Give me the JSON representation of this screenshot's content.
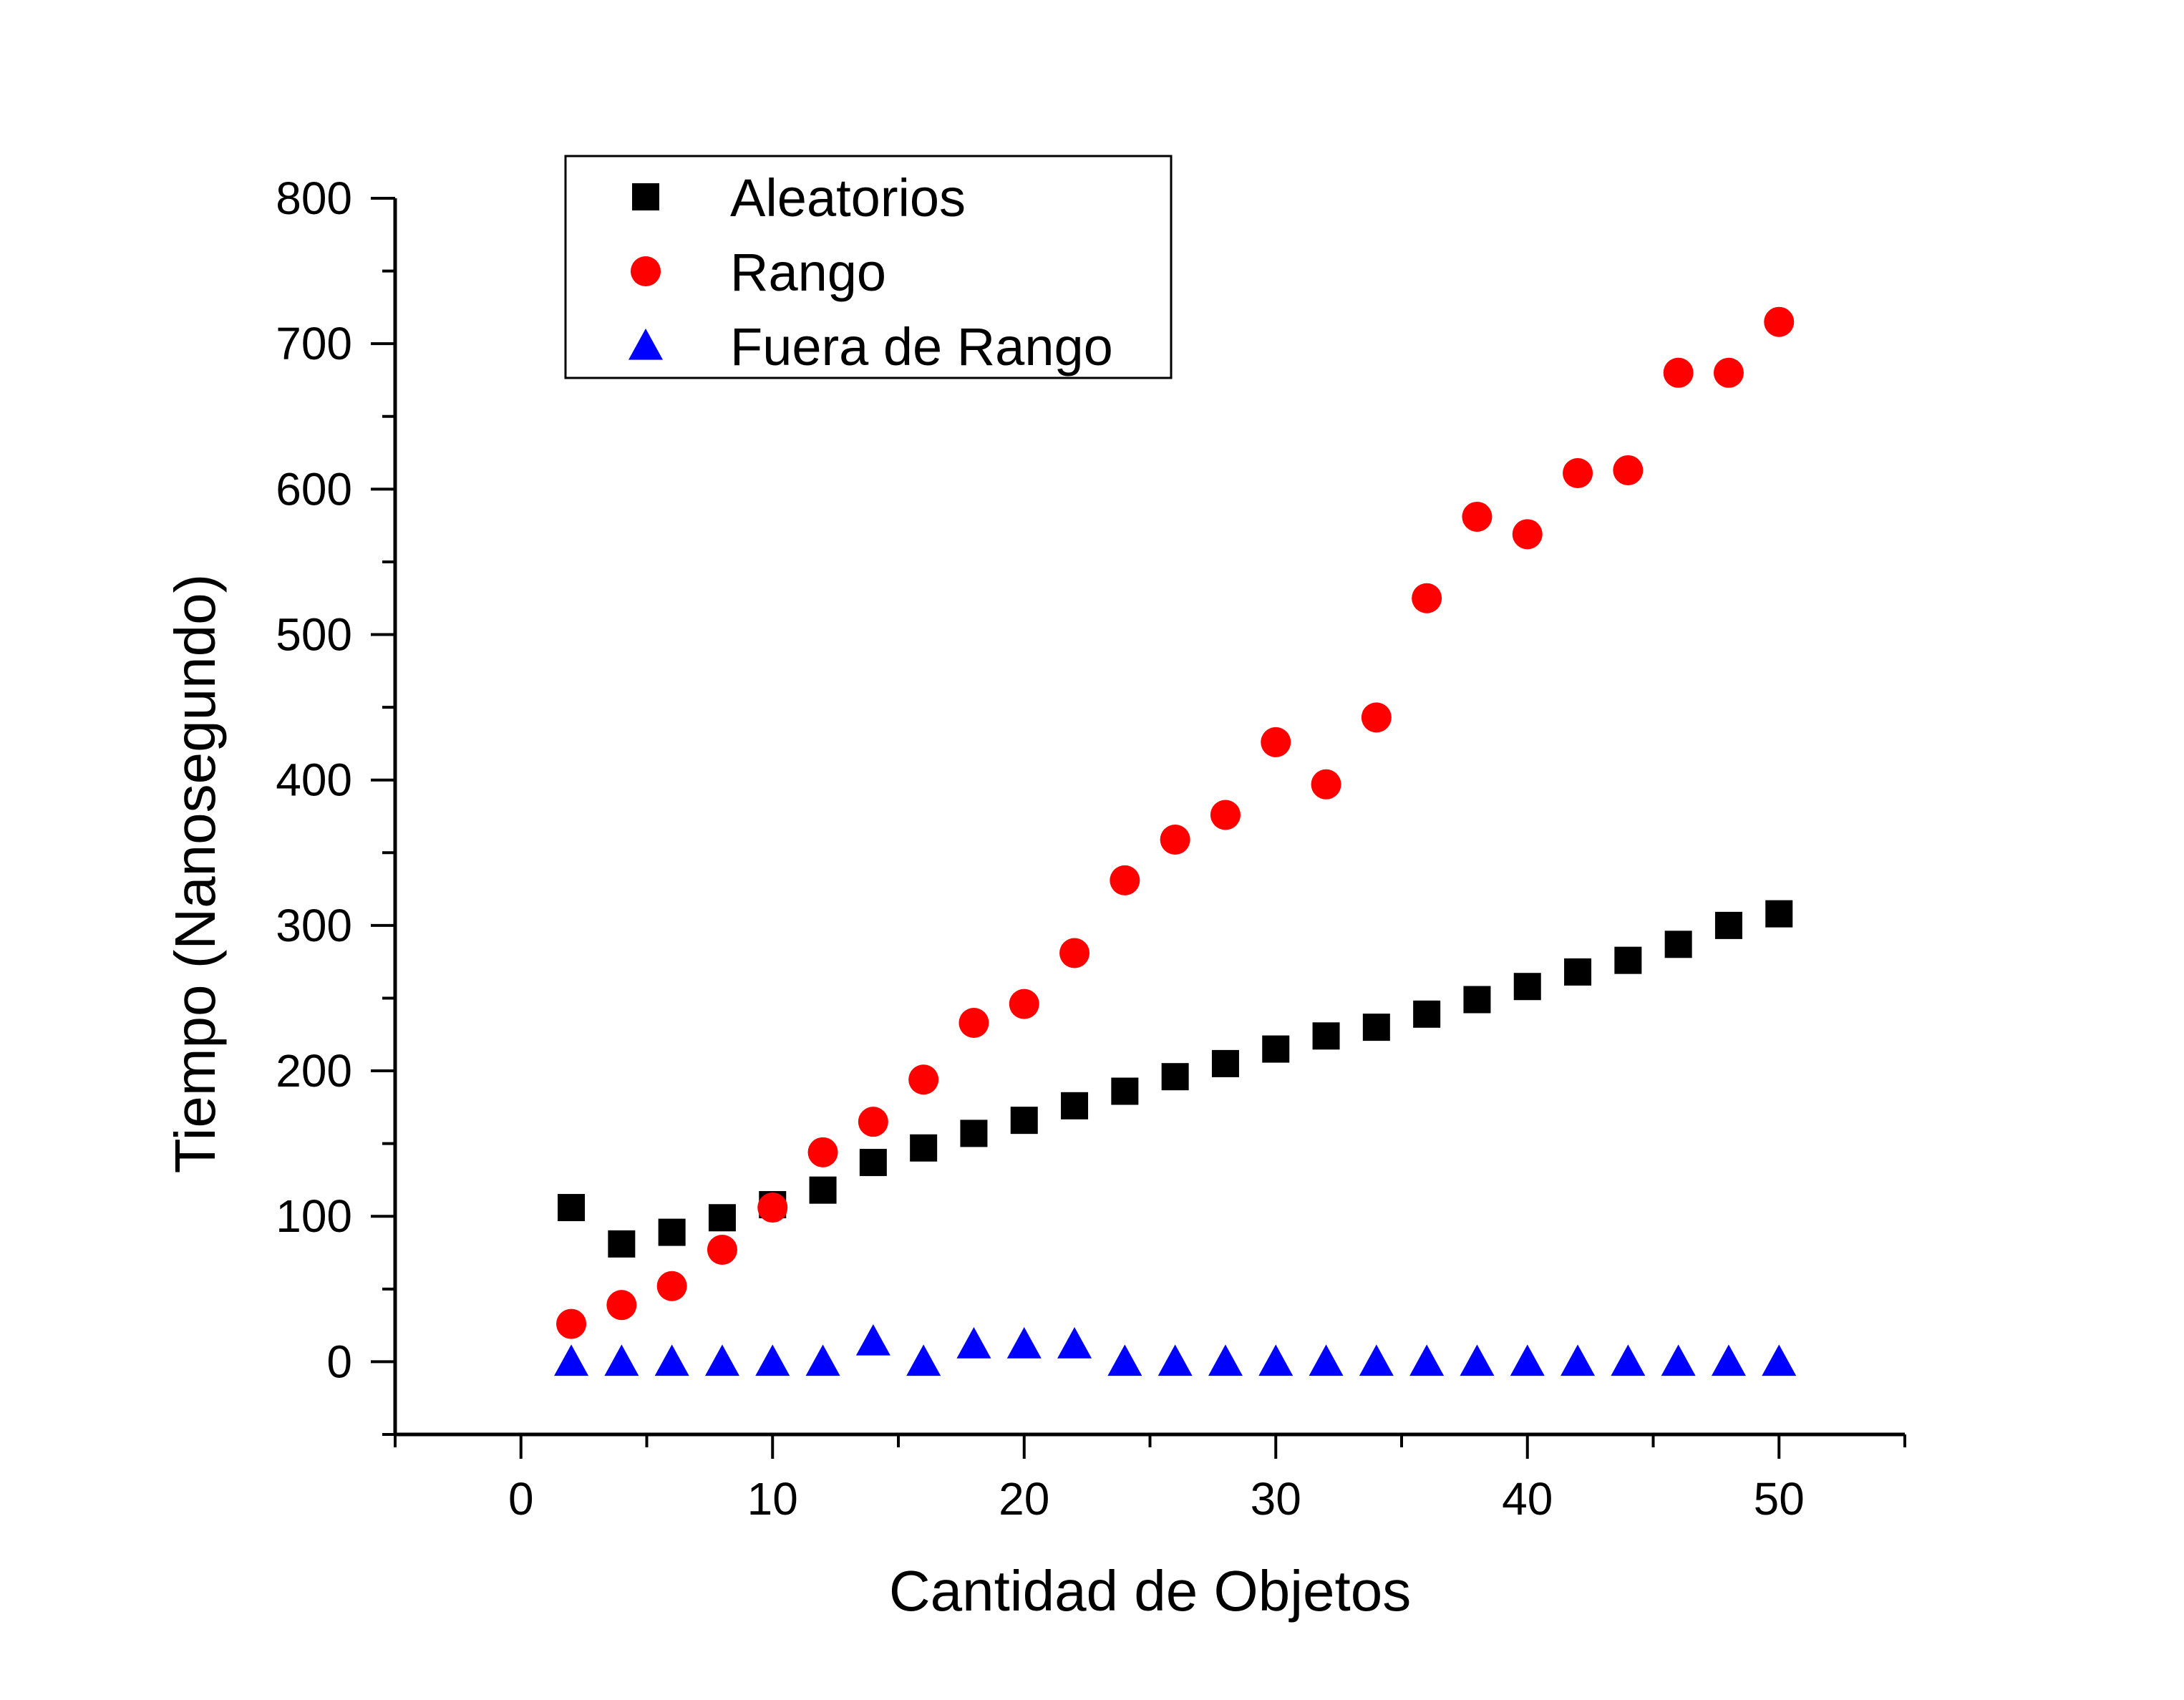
{
  "chart_data": {
    "type": "scatter",
    "title": "",
    "xlabel": "Cantidad de Objetos",
    "ylabel": "Tiempo (Nanosegundo)",
    "xlim": [
      -5,
      55
    ],
    "ylim": [
      -50,
      800
    ],
    "x_ticks": [
      0,
      10,
      20,
      30,
      40,
      50
    ],
    "y_ticks": [
      0,
      100,
      200,
      300,
      400,
      500,
      600,
      700,
      800
    ],
    "grid": false,
    "legend_position": "top-left",
    "x": [
      2,
      4,
      6,
      8,
      10,
      12,
      14,
      16,
      18,
      20,
      22,
      24,
      26,
      28,
      30,
      32,
      34,
      36,
      38,
      40,
      42,
      44,
      46,
      48,
      50
    ],
    "series": [
      {
        "name": "Aleatorios",
        "marker": "square",
        "color": "#000000",
        "values": [
          106,
          81,
          89,
          99,
          108,
          118,
          137,
          147,
          157,
          166,
          176,
          186,
          196,
          205,
          215,
          224,
          230,
          239,
          249,
          258,
          268,
          276,
          287,
          300,
          308
        ]
      },
      {
        "name": "Rango",
        "marker": "circle",
        "color": "#ff0000",
        "values": [
          26,
          39,
          52,
          77,
          106,
          144,
          165,
          194,
          233,
          246,
          281,
          331,
          359,
          376,
          426,
          397,
          443,
          525,
          581,
          569,
          611,
          613,
          680,
          680,
          715
        ]
      },
      {
        "name": "Fuera de Rango",
        "marker": "triangle",
        "color": "#0000ff",
        "values": [
          0,
          0,
          0,
          0,
          0,
          0,
          14,
          0,
          12,
          12,
          12,
          0,
          0,
          0,
          0,
          0,
          0,
          0,
          0,
          0,
          0,
          0,
          0,
          0,
          0
        ]
      }
    ]
  }
}
